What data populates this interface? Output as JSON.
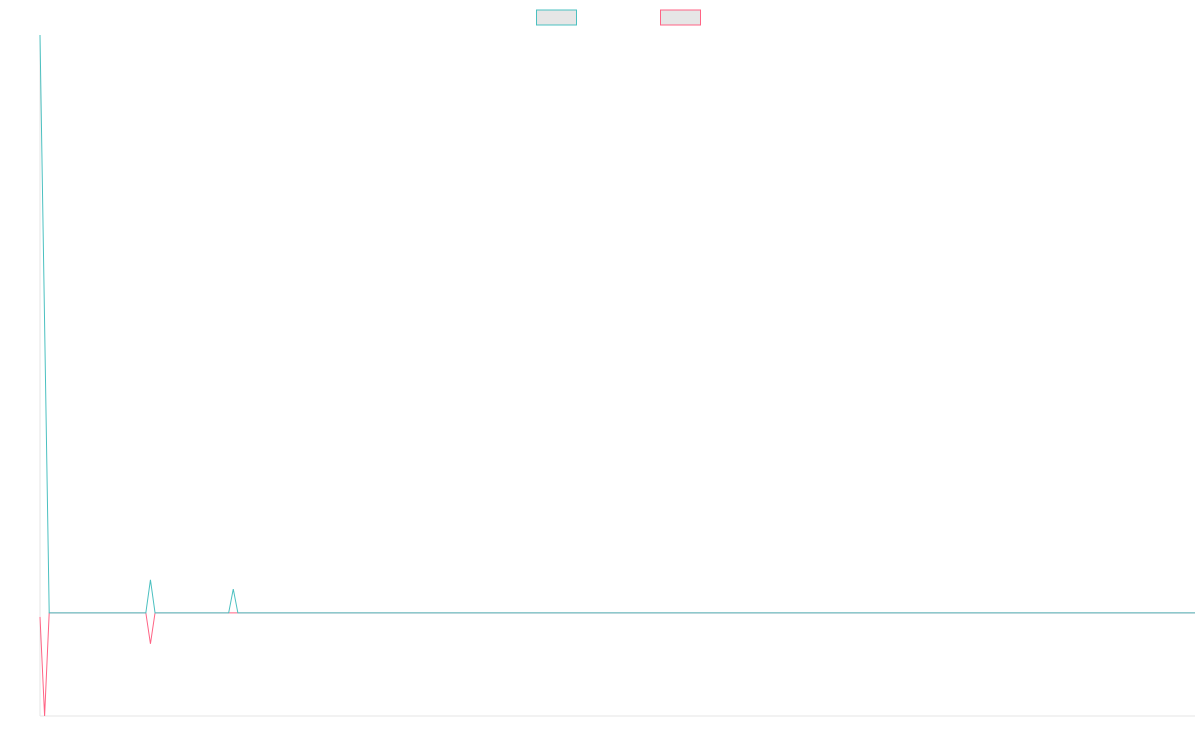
{
  "chart_data": {
    "type": "line",
    "xlim": [
      0,
      251
    ],
    "ylim": [
      -10,
      56
    ],
    "legend": "top",
    "legend_fill": "#e6e6e6",
    "series": [
      {
        "color": "#4bc0c0",
        "x": [
          0,
          2,
          23,
          24,
          25,
          41,
          42,
          43,
          251
        ],
        "values": [
          56,
          0,
          0,
          3.2,
          0,
          0,
          2.3,
          0,
          0
        ]
      },
      {
        "color": "#ff6384",
        "x": [
          0,
          1,
          2,
          23,
          24,
          25,
          251
        ],
        "values": [
          -0.4,
          -10,
          0,
          0,
          -3,
          0,
          0
        ]
      }
    ]
  }
}
